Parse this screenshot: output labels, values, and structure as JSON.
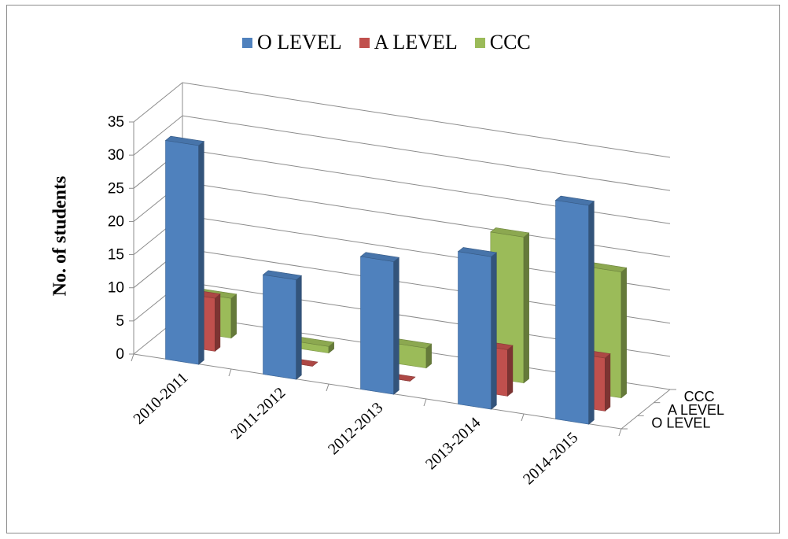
{
  "chart_data": {
    "type": "bar",
    "style": "3d-column",
    "title": "",
    "xlabel": "",
    "ylabel": "No. of students",
    "ylim": [
      0,
      35
    ],
    "yticks": [
      "0",
      "5",
      "10",
      "15",
      "20",
      "25",
      "30",
      "35"
    ],
    "categories": [
      "2010-2011",
      "2011-2012",
      "2012-2013",
      "2013-2014",
      "2014-2015"
    ],
    "depth_labels": [
      "O LEVEL",
      "A LEVEL",
      "CCC"
    ],
    "legend_position": "top",
    "grid": true,
    "series": [
      {
        "name": "O LEVEL",
        "color": "#4f81bd",
        "values": [
          33,
          15,
          20,
          23,
          33
        ]
      },
      {
        "name": "A LEVEL",
        "color": "#c0504d",
        "values": [
          8,
          0,
          0,
          7,
          8
        ]
      },
      {
        "name": "CCC",
        "color": "#9bbb59",
        "values": [
          6,
          1,
          3,
          22,
          19
        ]
      }
    ]
  }
}
